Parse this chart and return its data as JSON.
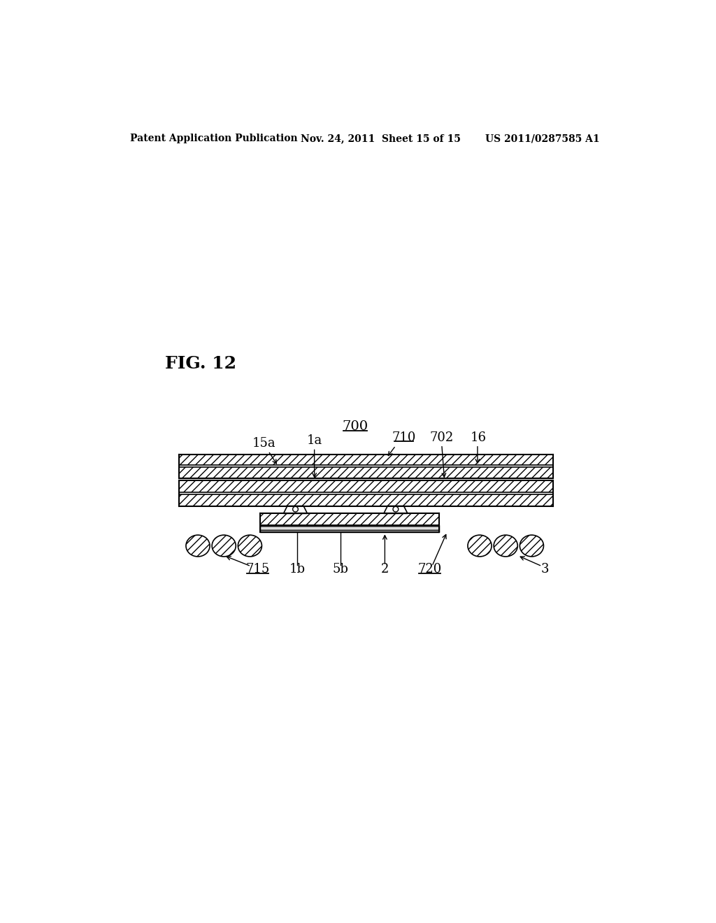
{
  "bg_color": "#ffffff",
  "header_left": "Patent Application Publication",
  "header_mid": "Nov. 24, 2011  Sheet 15 of 15",
  "header_right": "US 2011/0287585 A1",
  "fig_label": "FIG. 12",
  "label_700": "700",
  "label_710": "710",
  "label_715": "715",
  "label_720": "720",
  "label_702": "702",
  "label_16": "16",
  "label_15a": "15a",
  "label_1a": "1a",
  "label_1b": "1b",
  "label_5b": "5b",
  "label_2": "2",
  "label_3": "3"
}
